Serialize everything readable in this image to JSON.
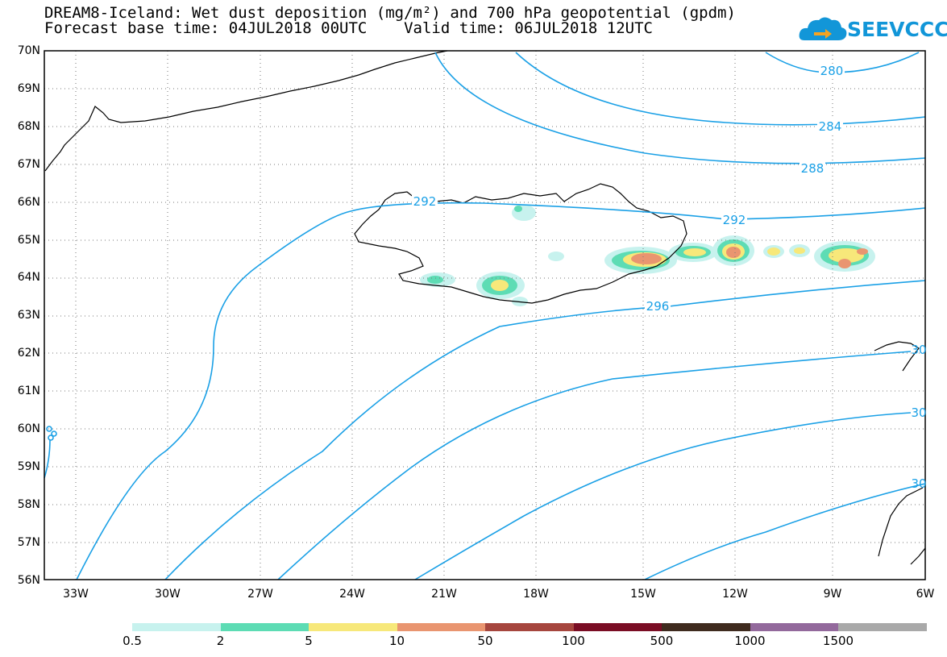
{
  "title": {
    "line1": "DREAM8-Iceland: Wet dust deposition (mg/m²) and 700 hPa geopotential (gpdm)",
    "line2": "Forecast base time: 04JUL2018 00UTC    Valid time: 06JUL2018 12UTC"
  },
  "logo": {
    "text": "SEEVCCC",
    "icon": "cloud-arrow-icon",
    "color": "#1296d8"
  },
  "axes": {
    "lat_labels": [
      "70N",
      "69N",
      "68N",
      "67N",
      "66N",
      "65N",
      "64N",
      "63N",
      "62N",
      "61N",
      "60N",
      "59N",
      "58N",
      "57N",
      "56N"
    ],
    "lon_labels": [
      "33W",
      "30W",
      "27W",
      "24W",
      "21W",
      "18W",
      "15W",
      "12W",
      "9W",
      "6W"
    ],
    "lat_range": [
      56,
      70
    ],
    "lon_range": [
      -34.5,
      -6
    ]
  },
  "contours": {
    "color": "#1aa0e6",
    "labels": [
      "280",
      "284",
      "288",
      "292",
      "292",
      "296",
      "30",
      "30",
      "30"
    ]
  },
  "colorbar": {
    "colors": [
      "#c7f2ee",
      "#5ddcb4",
      "#f7e87a",
      "#e99570",
      "#a6463e",
      "#7a0d24",
      "#3f2b1f",
      "#93699c",
      "#a9a9a9"
    ],
    "labels": [
      "0.5",
      "2",
      "5",
      "10",
      "50",
      "100",
      "500",
      "1000",
      "1500"
    ]
  }
}
